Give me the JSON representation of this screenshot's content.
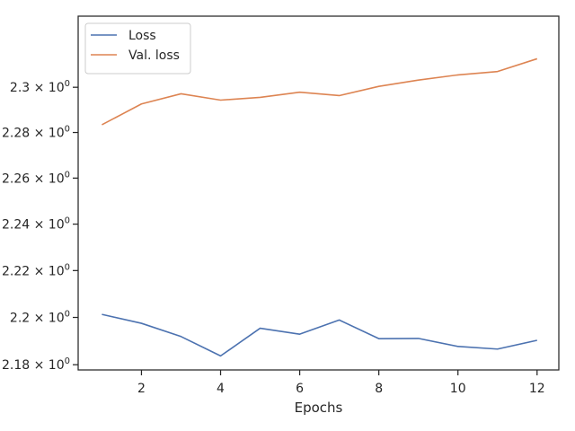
{
  "chart_data": {
    "type": "line",
    "title": "",
    "xlabel": "Epochs",
    "ylabel": "",
    "x": [
      1,
      2,
      3,
      4,
      5,
      6,
      7,
      8,
      9,
      10,
      11,
      12
    ],
    "series": [
      {
        "name": "Loss",
        "color": "#4c72b0",
        "values": [
          2.2013,
          2.1975,
          2.1919,
          2.1837,
          2.1954,
          2.1929,
          2.1989,
          2.191,
          2.1911,
          2.1877,
          2.1866,
          2.1903
        ]
      },
      {
        "name": "Val. loss",
        "color": "#dd8452",
        "values": [
          2.2834,
          2.2926,
          2.2971,
          2.2943,
          2.2955,
          2.2978,
          2.2963,
          2.3004,
          2.3032,
          2.3055,
          2.307,
          2.3127
        ]
      }
    ],
    "xlim": [
      0.4,
      12.55
    ],
    "ylim": [
      2.1778,
      2.3318
    ],
    "x_ticks": [
      2,
      4,
      6,
      8,
      10,
      12
    ],
    "y_ticks": [
      {
        "value": 2.18,
        "label": "2.18 × 10⁰"
      },
      {
        "value": 2.2,
        "label": "2.2 × 10⁰"
      },
      {
        "value": 2.22,
        "label": "2.22 × 10⁰"
      },
      {
        "value": 2.24,
        "label": "2.24 × 10⁰"
      },
      {
        "value": 2.26,
        "label": "2.26 × 10⁰"
      },
      {
        "value": 2.28,
        "label": "2.28 × 10⁰"
      },
      {
        "value": 2.3,
        "label": "2.3 × 10⁰"
      }
    ],
    "y_scale": "log",
    "grid": false,
    "legend_position": "top-left"
  }
}
